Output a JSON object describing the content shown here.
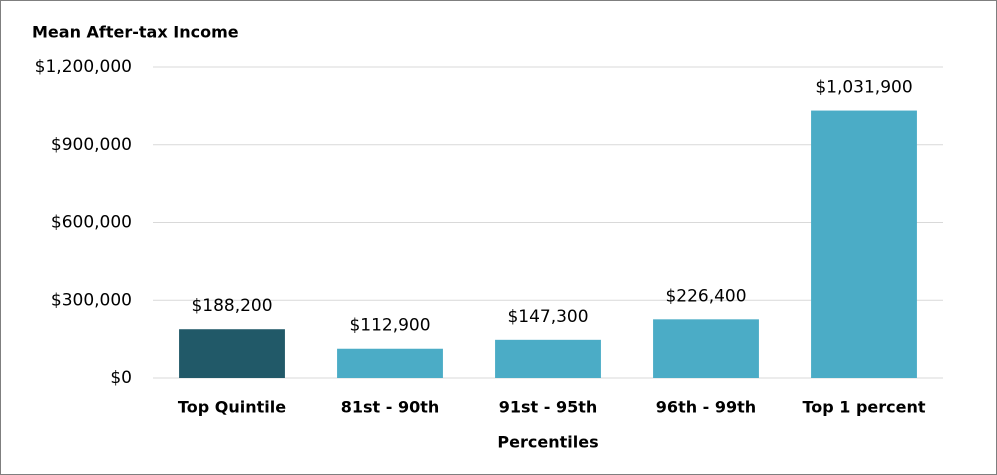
{
  "chart_data": {
    "type": "bar",
    "title": "Mean After-tax Income",
    "x_label": "Percentiles",
    "categories": [
      "Top Quintile",
      "81st - 90th",
      "91st - 95th",
      "96th - 99th",
      "Top 1 percent"
    ],
    "values": [
      188200,
      112900,
      147300,
      226400,
      1031900
    ],
    "value_labels": [
      "$188,200",
      "$112,900",
      "$147,300",
      "$226,400",
      "$1,031,900"
    ],
    "colors": [
      "#215968",
      "#4bacc6",
      "#4bacc6",
      "#4bacc6",
      "#4bacc6"
    ],
    "ylim": [
      0,
      1200000
    ],
    "yticks": [
      {
        "value": 0,
        "label": "$0"
      },
      {
        "value": 300000,
        "label": "$300,000"
      },
      {
        "value": 600000,
        "label": "$600,000"
      },
      {
        "value": 900000,
        "label": "$900,000"
      },
      {
        "value": 1200000,
        "label": "$1,200,000"
      }
    ],
    "grid": true
  }
}
